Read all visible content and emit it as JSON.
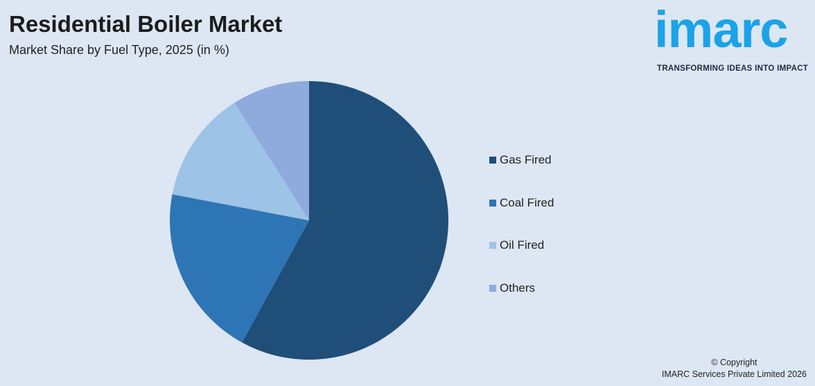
{
  "header": {
    "title": "Residential Boiler Market",
    "subtitle": "Market Share by Fuel Type, 2025 (in %)"
  },
  "logo": {
    "wordmark": "imarc",
    "tagline": "TRANSFORMING IDEAS INTO IMPACT",
    "color": "#1aa3e8"
  },
  "chart_data": {
    "type": "pie",
    "title": "Residential Boiler Market",
    "subtitle": "Market Share by Fuel Type, 2025 (in %)",
    "categories": [
      "Gas Fired",
      "Coal Fired",
      "Oil Fired",
      "Others"
    ],
    "values": [
      58,
      20,
      13,
      9
    ],
    "colors": [
      "#1f4e79",
      "#2e75b6",
      "#9dc3e6",
      "#8faadc"
    ],
    "legend_position": "right",
    "start_angle": "top",
    "direction": "clockwise"
  },
  "footer": {
    "copyright_line1": "© Copyright",
    "copyright_line2": "IMARC Services Private Limited 2026"
  }
}
